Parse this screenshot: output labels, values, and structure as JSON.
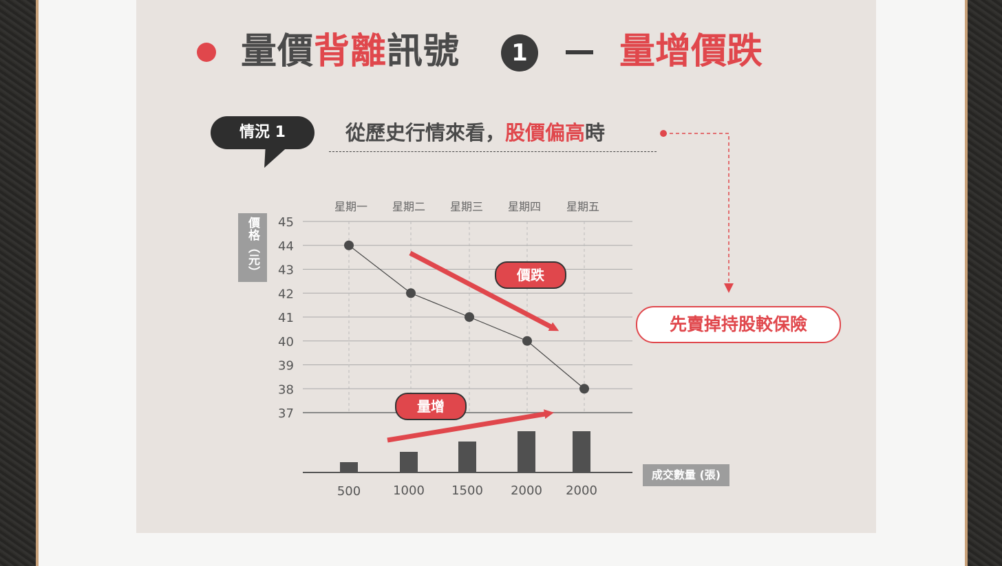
{
  "header": {
    "title_part1": "量價",
    "title_part2_red": "背離",
    "title_part3": "訊號",
    "title_number": "1",
    "title_subject": "量增價跌"
  },
  "scenario": {
    "badge": "情況 1",
    "text_prefix": "從歷史行情來看，",
    "text_red": "股價偏高",
    "text_suffix": "時"
  },
  "advice": "先賣掉持股較保險",
  "annotations": {
    "price_label": "價跌",
    "volume_label": "量增"
  },
  "colors": {
    "accent": "#e0474c",
    "dark": "#3b3b3b",
    "panel": "#e8e3df",
    "label_box": "#9d9d9d"
  },
  "chart_data": {
    "type": "line",
    "categories": [
      "星期一",
      "星期二",
      "星期三",
      "星期四",
      "星期五"
    ],
    "ylabel": "價格（元）",
    "ylim": [
      37,
      45
    ],
    "yticks": [
      "45",
      "44",
      "43",
      "42",
      "41",
      "40",
      "39",
      "38",
      "37"
    ],
    "series": [
      {
        "values": [
          44,
          42,
          41,
          40,
          38
        ]
      }
    ],
    "volume": {
      "type": "bar",
      "label": "成交數量 (張)",
      "values": [
        500,
        1000,
        1500,
        2000,
        2000
      ],
      "value_labels": [
        "500",
        "1000",
        "1500",
        "2000",
        "2000"
      ]
    },
    "grid": true
  }
}
